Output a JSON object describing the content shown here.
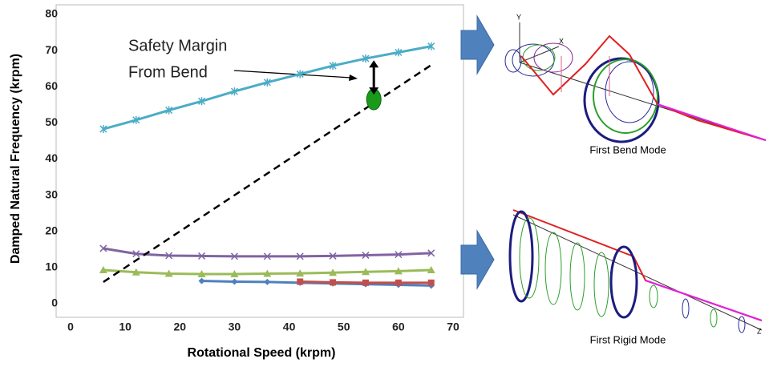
{
  "chart_data": {
    "type": "line",
    "y_label": "Damped Natural Frequency (krpm)",
    "x_label": "Rotational Speed (krpm)",
    "annotation": [
      "Safety Margin",
      "From Bend"
    ],
    "x": [
      6,
      12,
      18,
      24,
      30,
      36,
      42,
      48,
      54,
      60,
      66
    ],
    "series": [
      {
        "color": "#4bacc6",
        "marker": "star",
        "values": [
          48.3,
          50.8,
          53.5,
          56,
          58.7,
          61.2,
          63.5,
          65.8,
          67.8,
          69.5,
          71.2
        ]
      },
      {
        "color": "#8064a2",
        "marker": "x",
        "values": [
          15.3,
          13.8,
          13.3,
          13.2,
          13.1,
          13.1,
          13.1,
          13.2,
          13.4,
          13.6,
          14.0
        ]
      },
      {
        "color": "#9bbb59",
        "marker": "triangle",
        "values": [
          9.3,
          8.7,
          8.3,
          8.2,
          8.2,
          8.3,
          8.4,
          8.6,
          8.8,
          9.0,
          9.3
        ]
      },
      {
        "color": "#4f81bd",
        "marker": "diamond",
        "values": [
          null,
          null,
          null,
          6.3,
          6.1,
          6.0,
          5.8,
          5.6,
          5.4,
          5.2,
          5.0
        ]
      },
      {
        "color": "#c0504d",
        "marker": "square",
        "values": [
          null,
          null,
          null,
          null,
          null,
          null,
          6.1,
          5.9,
          5.8,
          5.8,
          5.8
        ]
      },
      {
        "color": "#000000",
        "dashed": true,
        "values": [
          6,
          null,
          null,
          null,
          null,
          null,
          null,
          null,
          null,
          null,
          66
        ]
      }
    ],
    "highlight": {
      "x": 55.5,
      "y": 56.5,
      "color": "#1a9a1a"
    },
    "margin_arrow": {
      "x": 55.5,
      "from": 57.8,
      "to": 67.3
    },
    "xlim": [
      0,
      70
    ],
    "xticks": [
      0,
      10,
      20,
      30,
      40,
      50,
      60,
      70
    ],
    "ylim": [
      0,
      80
    ],
    "yticks": [
      0,
      10,
      20,
      30,
      40,
      50,
      60,
      70,
      80
    ],
    "grid": false
  },
  "mode_shapes": [
    {
      "caption": "First Bend Mode",
      "axis_letters": [
        "Y",
        "X"
      ]
    },
    {
      "caption": "First Rigid Mode",
      "axis_letters": [
        "Z"
      ]
    }
  ]
}
